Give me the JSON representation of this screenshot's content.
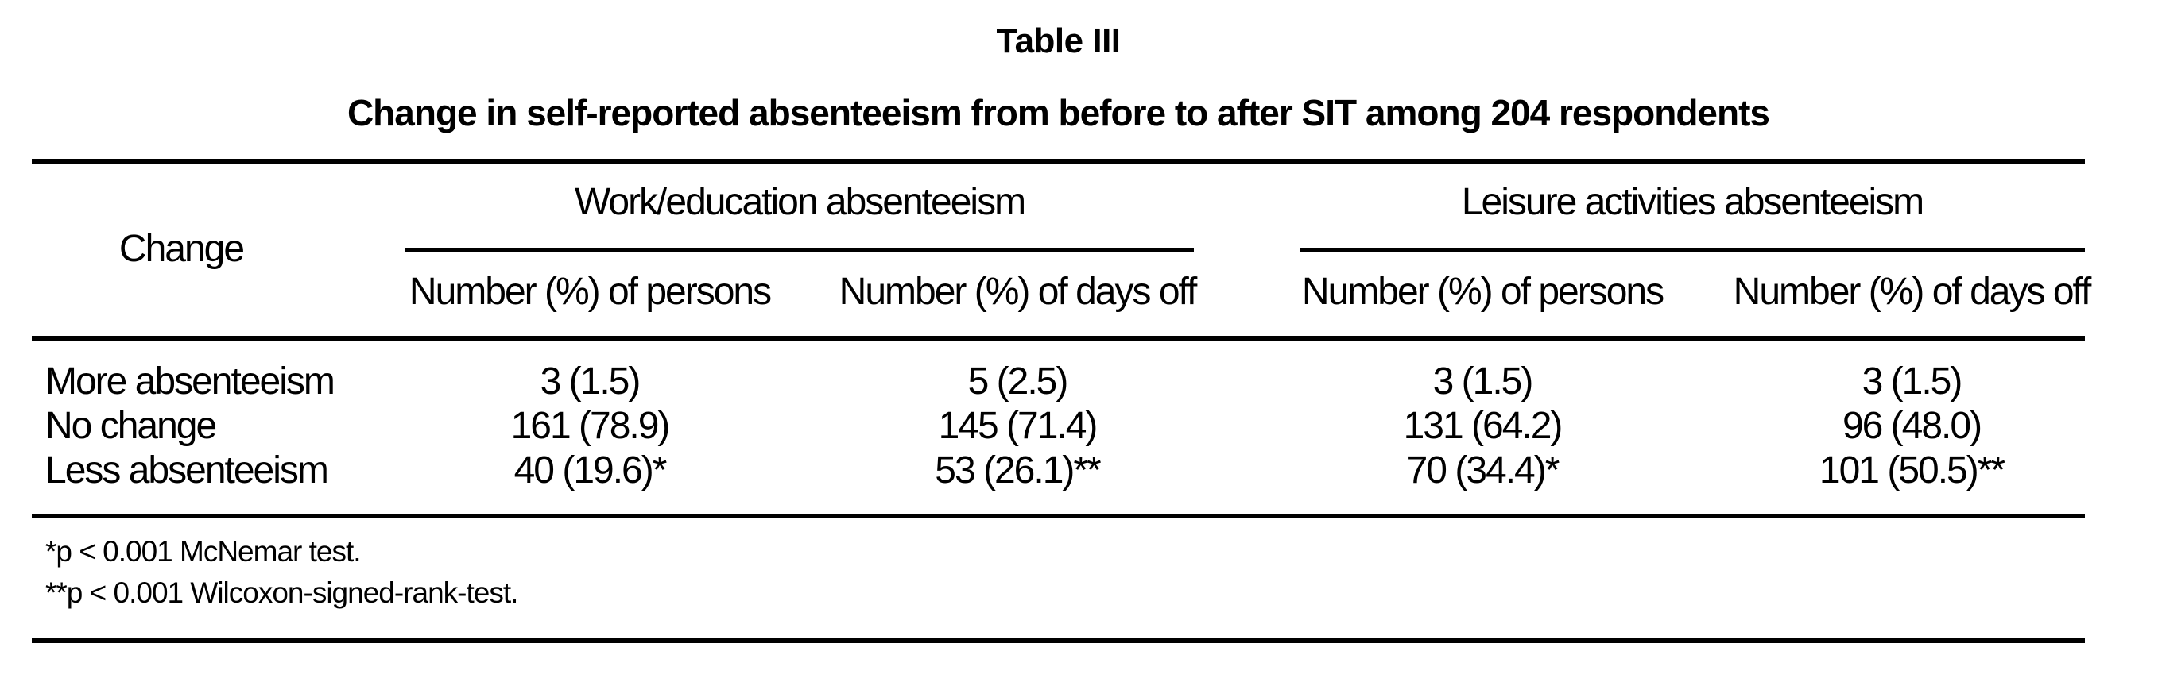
{
  "title": "Table III",
  "caption": "Change in self-reported absenteeism from before to after SIT among 204 respondents",
  "colors": {
    "text": "#000000",
    "background": "#ffffff"
  },
  "table": {
    "row_header": "Change",
    "groups": [
      {
        "label": "Work/education absenteeism",
        "columns": [
          "Number (%) of persons",
          "Number (%) of days off"
        ]
      },
      {
        "label": "Leisure activities absenteeism",
        "columns": [
          "Number (%) of persons",
          "Number (%) of days off"
        ]
      }
    ],
    "rows": [
      {
        "label": "More absenteeism",
        "values": [
          "3 (1.5)",
          "5 (2.5)",
          "3 (1.5)",
          "3 (1.5)"
        ]
      },
      {
        "label": "No change",
        "values": [
          "161 (78.9)",
          "145 (71.4)",
          "131 (64.2)",
          "96 (48.0)"
        ]
      },
      {
        "label": "Less absenteeism",
        "values": [
          "40 (19.6)*",
          "53 (26.1)**",
          "70 (34.4)*",
          "101 (50.5)**"
        ]
      }
    ],
    "footnotes": [
      "*p < 0.001 McNemar test.",
      "**p < 0.001 Wilcoxon-signed-rank-test."
    ]
  }
}
